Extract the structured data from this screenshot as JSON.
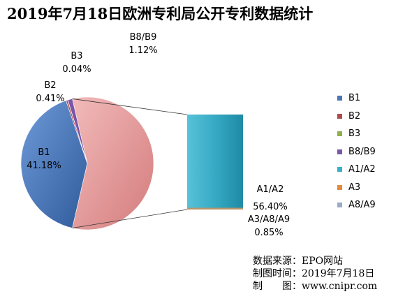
{
  "title": "2019年7月18日欧洲专利局公开专利数据统计",
  "colors": {
    "B1": "#4a76b8",
    "B2": "#b04a4a",
    "B3": "#8cb04a",
    "B8/B9": "#7a55a8",
    "A1/A2": "#3ab0c8",
    "A3": "#e48a3a",
    "A8/A9": "#9aaac8",
    "A_group": "#e8a0a0"
  },
  "chart_data": {
    "type": "pie",
    "subtype": "pie-of-bar",
    "title": "2019年7月18日欧洲专利局公开专利数据统计",
    "slices": [
      {
        "name": "B1",
        "value": 41.18,
        "label": "41.18%"
      },
      {
        "name": "B2",
        "value": 0.41,
        "label": "0.41%"
      },
      {
        "name": "B3",
        "value": 0.04,
        "label": "0.04%"
      },
      {
        "name": "B8/B9",
        "value": 1.12,
        "label": "1.12%"
      },
      {
        "name": "A1/A2",
        "value": 56.4,
        "label": "56.40%"
      },
      {
        "name": "A3/A8/A9",
        "value": 0.85,
        "label": "0.85%"
      }
    ],
    "legend": [
      "B1",
      "B2",
      "B3",
      "B8/B9",
      "A1/A2",
      "A3",
      "A8/A9"
    ],
    "legend_position": "right"
  },
  "source": {
    "lines": [
      {
        "label": "数据来源：",
        "value": "EPO网站"
      },
      {
        "label": "制图时间：",
        "value": "2019年7月18日"
      },
      {
        "label": "制　　图：",
        "value": "www.cnipr.com"
      }
    ]
  }
}
